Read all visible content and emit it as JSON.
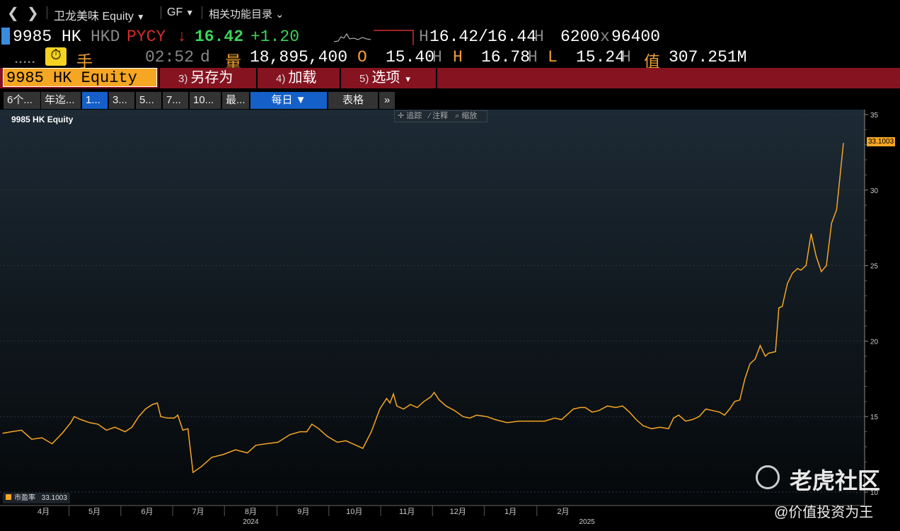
{
  "nav": {
    "back_glyph": "❮",
    "forward_glyph": "❯",
    "security_title": "卫龙美味 Equity",
    "function_code": "GF",
    "related_menu": "相关功能目录"
  },
  "quote": {
    "ticker": "9985 HK",
    "currency": "HKD",
    "source": "PYCY",
    "direction_arrow": "↓",
    "last_price": "16.42",
    "change": "+1.20",
    "bid": "16.42",
    "ask": "16.44",
    "bid_size": "6200",
    "ask_size": "96400",
    "size_sep": "x",
    "price_sep": "/",
    "h_suffix": "H",
    "lots_label": "手",
    "time": "02:52",
    "time_suffix": "d",
    "volume_label": "量",
    "volume": "18,895,400",
    "open_label": "O",
    "open": "15.40",
    "high_label": "H",
    "high": "16.78",
    "low_label": "L",
    "low": "15.24",
    "value_label": "值",
    "value": "307.251M"
  },
  "menu": {
    "ticker_field": "9985 HK Equity",
    "save_as_num": "3)",
    "save_as": "另存为",
    "load_num": "4)",
    "load": "加载",
    "options_num": "5)",
    "options": "选项",
    "options_caret": "▾"
  },
  "tabs": [
    "6个...",
    "年迄...",
    "1...",
    "3...",
    "5...",
    "7...",
    "10...",
    "最...",
    "每日 ▼",
    "表格",
    "»"
  ],
  "chart_tools": [
    "✛ 追踪",
    "⁄ 注释",
    "⌕ 缩放"
  ],
  "chart": {
    "title": "9985 HK Equity",
    "legend_label": "市盈率",
    "legend_value": "33.1003",
    "last_value_label": "33.1003",
    "line_color": "#f5a623"
  },
  "watermark": {
    "brand": "老虎社区",
    "author": "@价值投资为王"
  },
  "chart_data": {
    "type": "line",
    "title": "9985 HK Equity",
    "series": [
      {
        "name": "市盈率",
        "color": "#f5a623",
        "points": [
          [
            "2024-03-22",
            13.9
          ],
          [
            "2024-03-27",
            14.0
          ],
          [
            "2024-04-02",
            14.1
          ],
          [
            "2024-04-08",
            13.5
          ],
          [
            "2024-04-14",
            13.6
          ],
          [
            "2024-04-20",
            13.2
          ],
          [
            "2024-04-26",
            13.9
          ],
          [
            "2024-05-01",
            14.6
          ],
          [
            "2024-05-03",
            15.0
          ],
          [
            "2024-05-07",
            14.8
          ],
          [
            "2024-05-12",
            14.6
          ],
          [
            "2024-05-17",
            14.5
          ],
          [
            "2024-05-22",
            14.1
          ],
          [
            "2024-05-27",
            14.3
          ],
          [
            "2024-06-02",
            14.0
          ],
          [
            "2024-06-06",
            14.3
          ],
          [
            "2024-06-10",
            15.0
          ],
          [
            "2024-06-14",
            15.5
          ],
          [
            "2024-06-18",
            15.8
          ],
          [
            "2024-06-21",
            15.9
          ],
          [
            "2024-06-23",
            15.0
          ],
          [
            "2024-06-27",
            14.9
          ],
          [
            "2024-07-01",
            14.9
          ],
          [
            "2024-07-03",
            15.1
          ],
          [
            "2024-07-06",
            14.1
          ],
          [
            "2024-07-09",
            14.2
          ],
          [
            "2024-07-12",
            11.3
          ],
          [
            "2024-07-17",
            11.7
          ],
          [
            "2024-07-23",
            12.3
          ],
          [
            "2024-07-30",
            12.5
          ],
          [
            "2024-08-06",
            12.8
          ],
          [
            "2024-08-13",
            12.6
          ],
          [
            "2024-08-18",
            13.1
          ],
          [
            "2024-08-24",
            13.2
          ],
          [
            "2024-08-31",
            13.3
          ],
          [
            "2024-09-07",
            13.8
          ],
          [
            "2024-09-13",
            14.0
          ],
          [
            "2024-09-17",
            14.0
          ],
          [
            "2024-09-20",
            14.5
          ],
          [
            "2024-09-24",
            14.2
          ],
          [
            "2024-09-29",
            13.7
          ],
          [
            "2024-10-05",
            13.3
          ],
          [
            "2024-10-10",
            13.4
          ],
          [
            "2024-10-14",
            13.2
          ],
          [
            "2024-10-20",
            12.9
          ],
          [
            "2024-10-25",
            14.0
          ],
          [
            "2024-10-30",
            15.5
          ],
          [
            "2024-11-03",
            16.2
          ],
          [
            "2024-11-05",
            15.9
          ],
          [
            "2024-11-07",
            16.5
          ],
          [
            "2024-11-09",
            15.7
          ],
          [
            "2024-11-13",
            15.5
          ],
          [
            "2024-11-17",
            15.8
          ],
          [
            "2024-11-21",
            15.6
          ],
          [
            "2024-11-25",
            16.0
          ],
          [
            "2024-11-29",
            16.3
          ],
          [
            "2024-12-01",
            16.6
          ],
          [
            "2024-12-04",
            16.1
          ],
          [
            "2024-12-08",
            15.7
          ],
          [
            "2024-12-13",
            15.4
          ],
          [
            "2024-12-18",
            15.0
          ],
          [
            "2024-12-22",
            14.9
          ],
          [
            "2024-12-26",
            15.1
          ],
          [
            "2025-01-01",
            15.0
          ],
          [
            "2025-01-06",
            14.8
          ],
          [
            "2025-01-13",
            14.6
          ],
          [
            "2025-01-20",
            14.7
          ],
          [
            "2025-01-27",
            14.7
          ],
          [
            "2025-02-04",
            14.7
          ],
          [
            "2025-02-10",
            14.9
          ],
          [
            "2025-02-14",
            14.8
          ],
          [
            "2025-02-18",
            15.2
          ],
          [
            "2025-02-21",
            15.5
          ],
          [
            "2025-02-25",
            15.6
          ],
          [
            "2025-02-28",
            15.6
          ],
          [
            "2025-03-04",
            15.3
          ],
          [
            "2025-03-08",
            15.4
          ],
          [
            "2025-03-13",
            15.7
          ],
          [
            "2025-03-18",
            15.6
          ],
          [
            "2025-03-22",
            15.7
          ],
          [
            "2025-03-26",
            15.3
          ],
          [
            "2025-03-30",
            14.8
          ],
          [
            "2025-04-03",
            14.4
          ],
          [
            "2025-04-08",
            14.2
          ],
          [
            "2025-04-13",
            14.3
          ],
          [
            "2025-04-18",
            14.2
          ],
          [
            "2025-04-21",
            14.9
          ],
          [
            "2025-04-24",
            15.1
          ],
          [
            "2025-04-28",
            14.7
          ],
          [
            "2025-05-02",
            14.8
          ],
          [
            "2025-05-06",
            15.0
          ],
          [
            "2025-05-10",
            15.5
          ],
          [
            "2025-05-14",
            15.4
          ],
          [
            "2025-05-18",
            15.3
          ],
          [
            "2025-05-21",
            15.1
          ],
          [
            "2025-05-24",
            15.5
          ],
          [
            "2025-05-27",
            16.0
          ],
          [
            "2025-05-30",
            16.1
          ],
          [
            "2025-06-02",
            17.5
          ],
          [
            "2025-06-05",
            18.5
          ],
          [
            "2025-06-08",
            18.8
          ],
          [
            "2025-06-11",
            19.7
          ],
          [
            "2025-06-14",
            19.0
          ],
          [
            "2025-06-16",
            19.2
          ],
          [
            "2025-06-20",
            19.3
          ],
          [
            "2025-06-22",
            22.2
          ],
          [
            "2025-06-24",
            22.3
          ],
          [
            "2025-06-27",
            23.8
          ],
          [
            "2025-06-30",
            24.5
          ],
          [
            "2025-07-03",
            24.8
          ],
          [
            "2025-07-05",
            24.7
          ],
          [
            "2025-07-08",
            25.0
          ],
          [
            "2025-07-11",
            27.1
          ],
          [
            "2025-07-14",
            25.6
          ],
          [
            "2025-07-17",
            24.6
          ],
          [
            "2025-07-20",
            25.0
          ],
          [
            "2025-07-23",
            27.8
          ],
          [
            "2025-07-26",
            28.7
          ],
          [
            "2025-07-30",
            33.1
          ]
        ]
      }
    ],
    "x_ticks": [
      {
        "date": "2024-04-15",
        "label": "4月"
      },
      {
        "date": "2024-05-15",
        "label": "5月"
      },
      {
        "date": "2024-06-15",
        "label": "6月"
      },
      {
        "date": "2024-07-15",
        "label": "7月"
      },
      {
        "date": "2024-08-15",
        "label": "8月"
      },
      {
        "date": "2024-09-15",
        "label": "9月"
      },
      {
        "date": "2024-10-15",
        "label": "10月"
      },
      {
        "date": "2024-11-15",
        "label": "11月"
      },
      {
        "date": "2024-12-15",
        "label": "12月"
      },
      {
        "date": "2025-01-15",
        "label": "1月"
      },
      {
        "date": "2025-02-15",
        "label": "2月"
      }
    ],
    "year_labels": [
      {
        "date": "2024-08-15",
        "label": "2024"
      },
      {
        "date": "2025-03-01",
        "label": "2025"
      }
    ],
    "y_ticks": [
      10,
      15,
      20,
      25,
      30,
      35
    ],
    "ylim": [
      10,
      35
    ],
    "grid": true
  }
}
